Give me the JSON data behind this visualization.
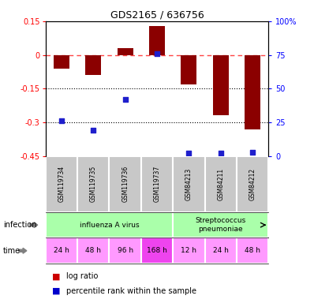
{
  "title": "GDS2165 / 636756",
  "samples": [
    "GSM119734",
    "GSM119735",
    "GSM119736",
    "GSM119737",
    "GSM84213",
    "GSM84211",
    "GSM84212"
  ],
  "log_ratio": [
    -0.06,
    -0.09,
    0.03,
    0.13,
    -0.13,
    -0.27,
    -0.33
  ],
  "percentile_rank": [
    26,
    19,
    42,
    76,
    2,
    2,
    3
  ],
  "ylim_left": [
    -0.45,
    0.15
  ],
  "yticks_left": [
    0.15,
    0,
    -0.15,
    -0.3,
    -0.45
  ],
  "yticks_right": [
    100,
    75,
    50,
    25,
    0
  ],
  "bar_color": "#8B0000",
  "dot_color": "#1F1FCC",
  "dashed_color": "#FF4444",
  "infection_groups": [
    {
      "start": 0,
      "end": 3,
      "label": "influenza A virus",
      "color": "#AAFFAA"
    },
    {
      "start": 4,
      "end": 6,
      "label": "Streptococcus\npneumoniae",
      "color": "#AAFFAA"
    }
  ],
  "time_labels": [
    "24 h",
    "48 h",
    "96 h",
    "168 h",
    "12 h",
    "24 h",
    "48 h"
  ],
  "time_colors": [
    "#FF99FF",
    "#FF99FF",
    "#FF99FF",
    "#EE44EE",
    "#FF99FF",
    "#FF99FF",
    "#FF99FF"
  ],
  "legend_text1": "log ratio",
  "legend_text2": "percentile rank within the sample",
  "legend_bar_color": "#CC0000",
  "legend_dot_color": "#0000CC"
}
